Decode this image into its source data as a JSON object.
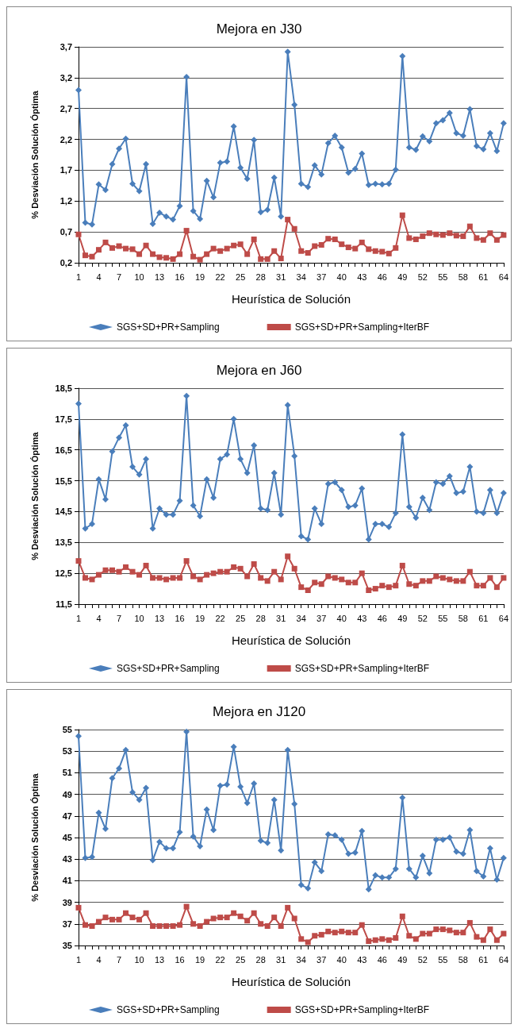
{
  "chart_data": [
    {
      "type": "line",
      "title": "Mejora en J30",
      "xlabel": "Heurística de Solución",
      "ylabel": "% Desviación Solución Óptima",
      "categories": [
        "1",
        null,
        null,
        "4",
        null,
        null,
        "7",
        null,
        null,
        "10",
        null,
        null,
        "13",
        null,
        null,
        "16",
        null,
        null,
        "19",
        null,
        null,
        "22",
        null,
        null,
        "25",
        null,
        null,
        "28",
        null,
        null,
        "31",
        null,
        null,
        "34",
        null,
        null,
        "37",
        null,
        null,
        "40",
        null,
        null,
        "43",
        null,
        null,
        "46",
        null,
        null,
        "49",
        null,
        null,
        "52",
        null,
        null,
        "55",
        null,
        null,
        "58",
        null,
        null,
        "61",
        null,
        null,
        "64"
      ],
      "series": [
        {
          "name": "SGS+SD+PR+Sampling",
          "color": "#4a7ebb",
          "marker": "diamond",
          "values": [
            3.0,
            0.85,
            0.82,
            1.47,
            1.38,
            1.8,
            2.05,
            2.21,
            1.48,
            1.36,
            1.8,
            0.83,
            1.01,
            0.95,
            0.9,
            1.12,
            3.21,
            1.04,
            0.91,
            1.53,
            1.26,
            1.82,
            1.84,
            2.41,
            1.74,
            1.56,
            2.19,
            1.02,
            1.06,
            1.58,
            0.95,
            3.62,
            2.76,
            1.48,
            1.43,
            1.78,
            1.63,
            2.14,
            2.26,
            2.07,
            1.66,
            1.72,
            1.97,
            1.46,
            1.48,
            1.47,
            1.48,
            1.71,
            3.55,
            2.07,
            2.03,
            2.25,
            2.17,
            2.46,
            2.51,
            2.63,
            2.3,
            2.26,
            2.69,
            2.09,
            2.04,
            2.3,
            2.01,
            2.46
          ]
        },
        {
          "name": "SGS+SD+PR+Sampling+IterBF",
          "color": "#be4b48",
          "marker": "square",
          "values": [
            0.66,
            0.32,
            0.3,
            0.41,
            0.53,
            0.44,
            0.47,
            0.43,
            0.42,
            0.34,
            0.48,
            0.34,
            0.29,
            0.28,
            0.26,
            0.34,
            0.72,
            0.3,
            0.25,
            0.34,
            0.43,
            0.39,
            0.43,
            0.48,
            0.5,
            0.34,
            0.58,
            0.26,
            0.26,
            0.39,
            0.27,
            0.9,
            0.75,
            0.39,
            0.36,
            0.47,
            0.49,
            0.59,
            0.58,
            0.5,
            0.45,
            0.43,
            0.53,
            0.42,
            0.39,
            0.38,
            0.35,
            0.44,
            0.97,
            0.6,
            0.58,
            0.63,
            0.68,
            0.66,
            0.65,
            0.68,
            0.64,
            0.63,
            0.79,
            0.6,
            0.57,
            0.68,
            0.57,
            0.65
          ]
        }
      ],
      "ylim": [
        0.2,
        3.7
      ],
      "yticks": [
        {
          "value": 0.2,
          "label": "0,2"
        },
        {
          "value": 0.7,
          "label": "0,7"
        },
        {
          "value": 1.2,
          "label": "1,2"
        },
        {
          "value": 1.7,
          "label": "1,7"
        },
        {
          "value": 2.2,
          "label": "2,2"
        },
        {
          "value": 2.7,
          "label": "2,7"
        },
        {
          "value": 3.2,
          "label": "3,2"
        },
        {
          "value": 3.7,
          "label": "3,7"
        }
      ],
      "grid": "y",
      "legend": "bottom"
    },
    {
      "type": "line",
      "title": "Mejora en J60",
      "xlabel": "Heurística de Solución",
      "ylabel": "% Desviación Solución Óptima",
      "categories": [
        "1",
        null,
        null,
        "4",
        null,
        null,
        "7",
        null,
        null,
        "10",
        null,
        null,
        "13",
        null,
        null,
        "16",
        null,
        null,
        "19",
        null,
        null,
        "22",
        null,
        null,
        "25",
        null,
        null,
        "28",
        null,
        null,
        "31",
        null,
        null,
        "34",
        null,
        null,
        "37",
        null,
        null,
        "40",
        null,
        null,
        "43",
        null,
        null,
        "46",
        null,
        null,
        "49",
        null,
        null,
        "52",
        null,
        null,
        "55",
        null,
        null,
        "58",
        null,
        null,
        "61",
        null,
        null,
        "64"
      ],
      "series": [
        {
          "name": "SGS+SD+PR+Sampling",
          "color": "#4a7ebb",
          "marker": "diamond",
          "values": [
            18.0,
            13.95,
            14.1,
            15.55,
            14.9,
            16.45,
            16.9,
            17.3,
            15.95,
            15.7,
            16.2,
            13.95,
            14.6,
            14.4,
            14.4,
            14.85,
            18.25,
            14.7,
            14.35,
            15.55,
            14.95,
            16.2,
            16.35,
            17.5,
            16.2,
            15.75,
            16.65,
            14.6,
            14.55,
            15.75,
            14.4,
            17.95,
            16.3,
            13.7,
            13.6,
            14.6,
            14.1,
            15.4,
            15.45,
            15.2,
            14.65,
            14.7,
            15.25,
            13.6,
            14.1,
            14.1,
            14.0,
            14.45,
            17.0,
            14.65,
            14.3,
            14.95,
            14.55,
            15.45,
            15.4,
            15.65,
            15.1,
            15.15,
            15.95,
            14.5,
            14.45,
            15.2,
            14.45,
            15.1
          ]
        },
        {
          "name": "SGS+SD+PR+Sampling+IterBF",
          "color": "#be4b48",
          "marker": "square",
          "values": [
            12.9,
            12.35,
            12.3,
            12.45,
            12.6,
            12.6,
            12.55,
            12.7,
            12.55,
            12.45,
            12.75,
            12.35,
            12.35,
            12.3,
            12.35,
            12.35,
            12.9,
            12.4,
            12.3,
            12.45,
            12.5,
            12.55,
            12.55,
            12.7,
            12.65,
            12.4,
            12.8,
            12.35,
            12.25,
            12.55,
            12.3,
            13.05,
            12.65,
            12.05,
            11.95,
            12.2,
            12.15,
            12.4,
            12.35,
            12.3,
            12.2,
            12.2,
            12.5,
            11.95,
            12.0,
            12.1,
            12.05,
            12.1,
            12.75,
            12.15,
            12.1,
            12.25,
            12.25,
            12.4,
            12.35,
            12.3,
            12.25,
            12.25,
            12.55,
            12.1,
            12.1,
            12.35,
            12.05,
            12.35
          ]
        }
      ],
      "ylim": [
        11.5,
        18.5
      ],
      "yticks": [
        {
          "value": 11.5,
          "label": "11,5"
        },
        {
          "value": 12.5,
          "label": "12,5"
        },
        {
          "value": 13.5,
          "label": "13,5"
        },
        {
          "value": 14.5,
          "label": "14,5"
        },
        {
          "value": 15.5,
          "label": "15,5"
        },
        {
          "value": 16.5,
          "label": "16,5"
        },
        {
          "value": 17.5,
          "label": "17,5"
        },
        {
          "value": 18.5,
          "label": "18,5"
        }
      ],
      "grid": "y",
      "legend": "bottom"
    },
    {
      "type": "line",
      "title": "Mejora en J120",
      "xlabel": "Heurística de Solución",
      "ylabel": "% Desviación Solución Óptima",
      "categories": [
        "1",
        null,
        null,
        "4",
        null,
        null,
        "7",
        null,
        null,
        "10",
        null,
        null,
        "13",
        null,
        null,
        "16",
        null,
        null,
        "19",
        null,
        null,
        "22",
        null,
        null,
        "25",
        null,
        null,
        "28",
        null,
        null,
        "31",
        null,
        null,
        "34",
        null,
        null,
        "37",
        null,
        null,
        "40",
        null,
        null,
        "43",
        null,
        null,
        "46",
        null,
        null,
        "49",
        null,
        null,
        "52",
        null,
        null,
        "55",
        null,
        null,
        "58",
        null,
        null,
        "61",
        null,
        null,
        "64"
      ],
      "series": [
        {
          "name": "SGS+SD+PR+Sampling",
          "color": "#4a7ebb",
          "marker": "diamond",
          "values": [
            54.4,
            43.1,
            43.2,
            47.3,
            45.8,
            50.5,
            51.4,
            53.1,
            49.2,
            48.5,
            49.6,
            42.9,
            44.6,
            44.0,
            44.0,
            45.5,
            54.8,
            45.1,
            44.2,
            47.6,
            45.7,
            49.8,
            49.9,
            53.4,
            49.7,
            48.2,
            50.0,
            44.7,
            44.5,
            48.5,
            43.8,
            53.1,
            48.1,
            40.6,
            40.3,
            42.7,
            41.9,
            45.3,
            45.2,
            44.8,
            43.5,
            43.6,
            45.6,
            40.2,
            41.5,
            41.3,
            41.3,
            42.1,
            48.7,
            42.1,
            41.3,
            43.3,
            41.7,
            44.8,
            44.8,
            45.0,
            43.7,
            43.5,
            45.7,
            41.9,
            41.4,
            44.0,
            41.1,
            43.1
          ]
        },
        {
          "name": "SGS+SD+PR+Sampling+IterBF",
          "color": "#be4b48",
          "marker": "square",
          "values": [
            38.5,
            36.9,
            36.8,
            37.2,
            37.6,
            37.4,
            37.4,
            38.0,
            37.6,
            37.4,
            38.0,
            36.8,
            36.8,
            36.8,
            36.8,
            36.9,
            38.6,
            37.0,
            36.8,
            37.2,
            37.5,
            37.6,
            37.6,
            38.0,
            37.7,
            37.3,
            38.0,
            37.0,
            36.8,
            37.6,
            36.8,
            38.5,
            37.5,
            35.6,
            35.3,
            35.9,
            36.0,
            36.3,
            36.2,
            36.3,
            36.2,
            36.2,
            36.9,
            35.4,
            35.5,
            35.6,
            35.5,
            35.7,
            37.7,
            35.9,
            35.6,
            36.1,
            36.1,
            36.5,
            36.5,
            36.4,
            36.2,
            36.2,
            37.1,
            35.8,
            35.5,
            36.5,
            35.5,
            36.1
          ]
        }
      ],
      "ylim": [
        35,
        55
      ],
      "yticks": [
        35,
        37,
        39,
        41,
        43,
        45,
        47,
        49,
        51,
        53,
        55
      ],
      "grid": "y",
      "legend": "bottom"
    }
  ]
}
